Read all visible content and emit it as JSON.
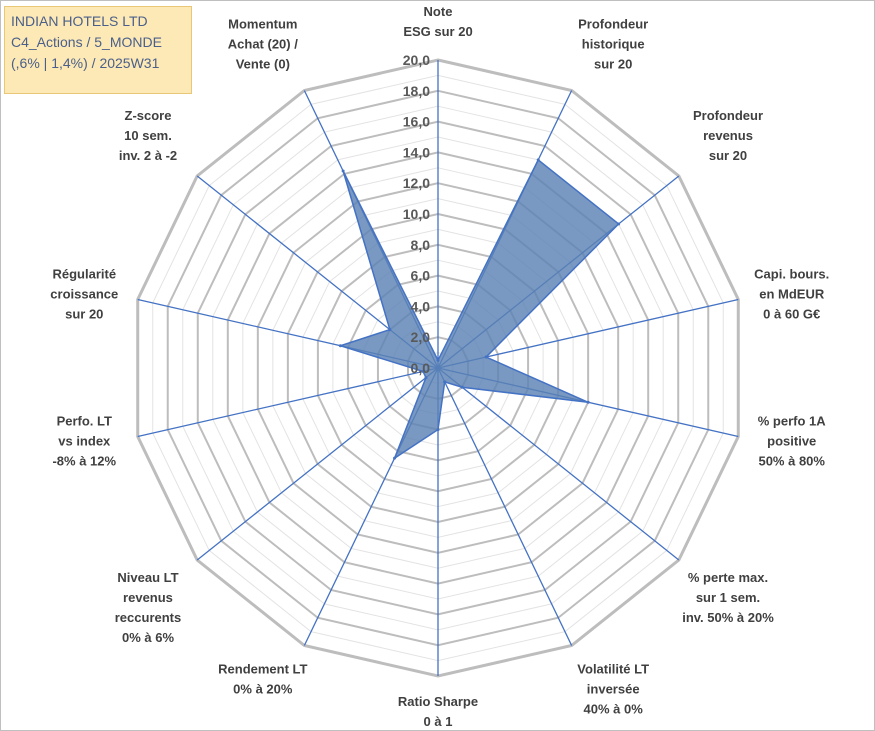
{
  "header": {
    "line1": "INDIAN HOTELS LTD",
    "line2": "C4_Actions / 5_MONDE",
    "line3": "(,6% | 1,4%) / 2025W31"
  },
  "chart_data": {
    "type": "radar",
    "range": [
      0,
      20
    ],
    "tick_step": 2,
    "ticks": [
      "0,0",
      "2,0",
      "4,0",
      "6,0",
      "8,0",
      "10,0",
      "12,0",
      "14,0",
      "16,0",
      "18,0",
      "20,0"
    ],
    "colors": {
      "fill": "#5b82b5",
      "stroke": "#4472c4",
      "grid": "#bfbfbf"
    },
    "axes": [
      {
        "label": [
          "Note",
          "ESG sur 20"
        ],
        "value": 0.5
      },
      {
        "label": [
          "Profondeur",
          "historique",
          "sur 20"
        ],
        "value": 15.0
      },
      {
        "label": [
          "Profondeur",
          "revenus",
          "sur 20"
        ],
        "value": 15.0
      },
      {
        "label": [
          "Capi. bours.",
          "en MdEUR",
          "0 à 60 G€"
        ],
        "value": 3.2
      },
      {
        "label": [
          "% perfo 1A",
          "positive",
          "50% à 80%"
        ],
        "value": 10.0
      },
      {
        "label": [
          "% perte max.",
          "sur 1 sem.",
          "inv. 50% à 20%"
        ],
        "value": 2.0
      },
      {
        "label": [
          "Volatilité LT",
          "inversée",
          "40% à 0%"
        ],
        "value": 1.0
      },
      {
        "label": [
          "Ratio Sharpe",
          "0 à 1"
        ],
        "value": 4.0
      },
      {
        "label": [
          "Rendement LT",
          "0% à 20%"
        ],
        "value": 6.5
      },
      {
        "label": [
          "Niveau LT",
          "revenus",
          "reccurents",
          "0% à 6%"
        ],
        "value": 1.0
      },
      {
        "label": [
          "Perfo. LT",
          "vs index",
          "-8% à 12%"
        ],
        "value": 1.0
      },
      {
        "label": [
          "Régularité",
          "croissance",
          "sur 20"
        ],
        "value": 6.5
      },
      {
        "label": [
          "Z-score",
          "10 sem.",
          "inv. 2 à -2"
        ],
        "value": 4.0
      },
      {
        "label": [
          "Momentum",
          "Achat (20) /",
          "Vente (0)"
        ],
        "value": 14.2
      }
    ]
  }
}
